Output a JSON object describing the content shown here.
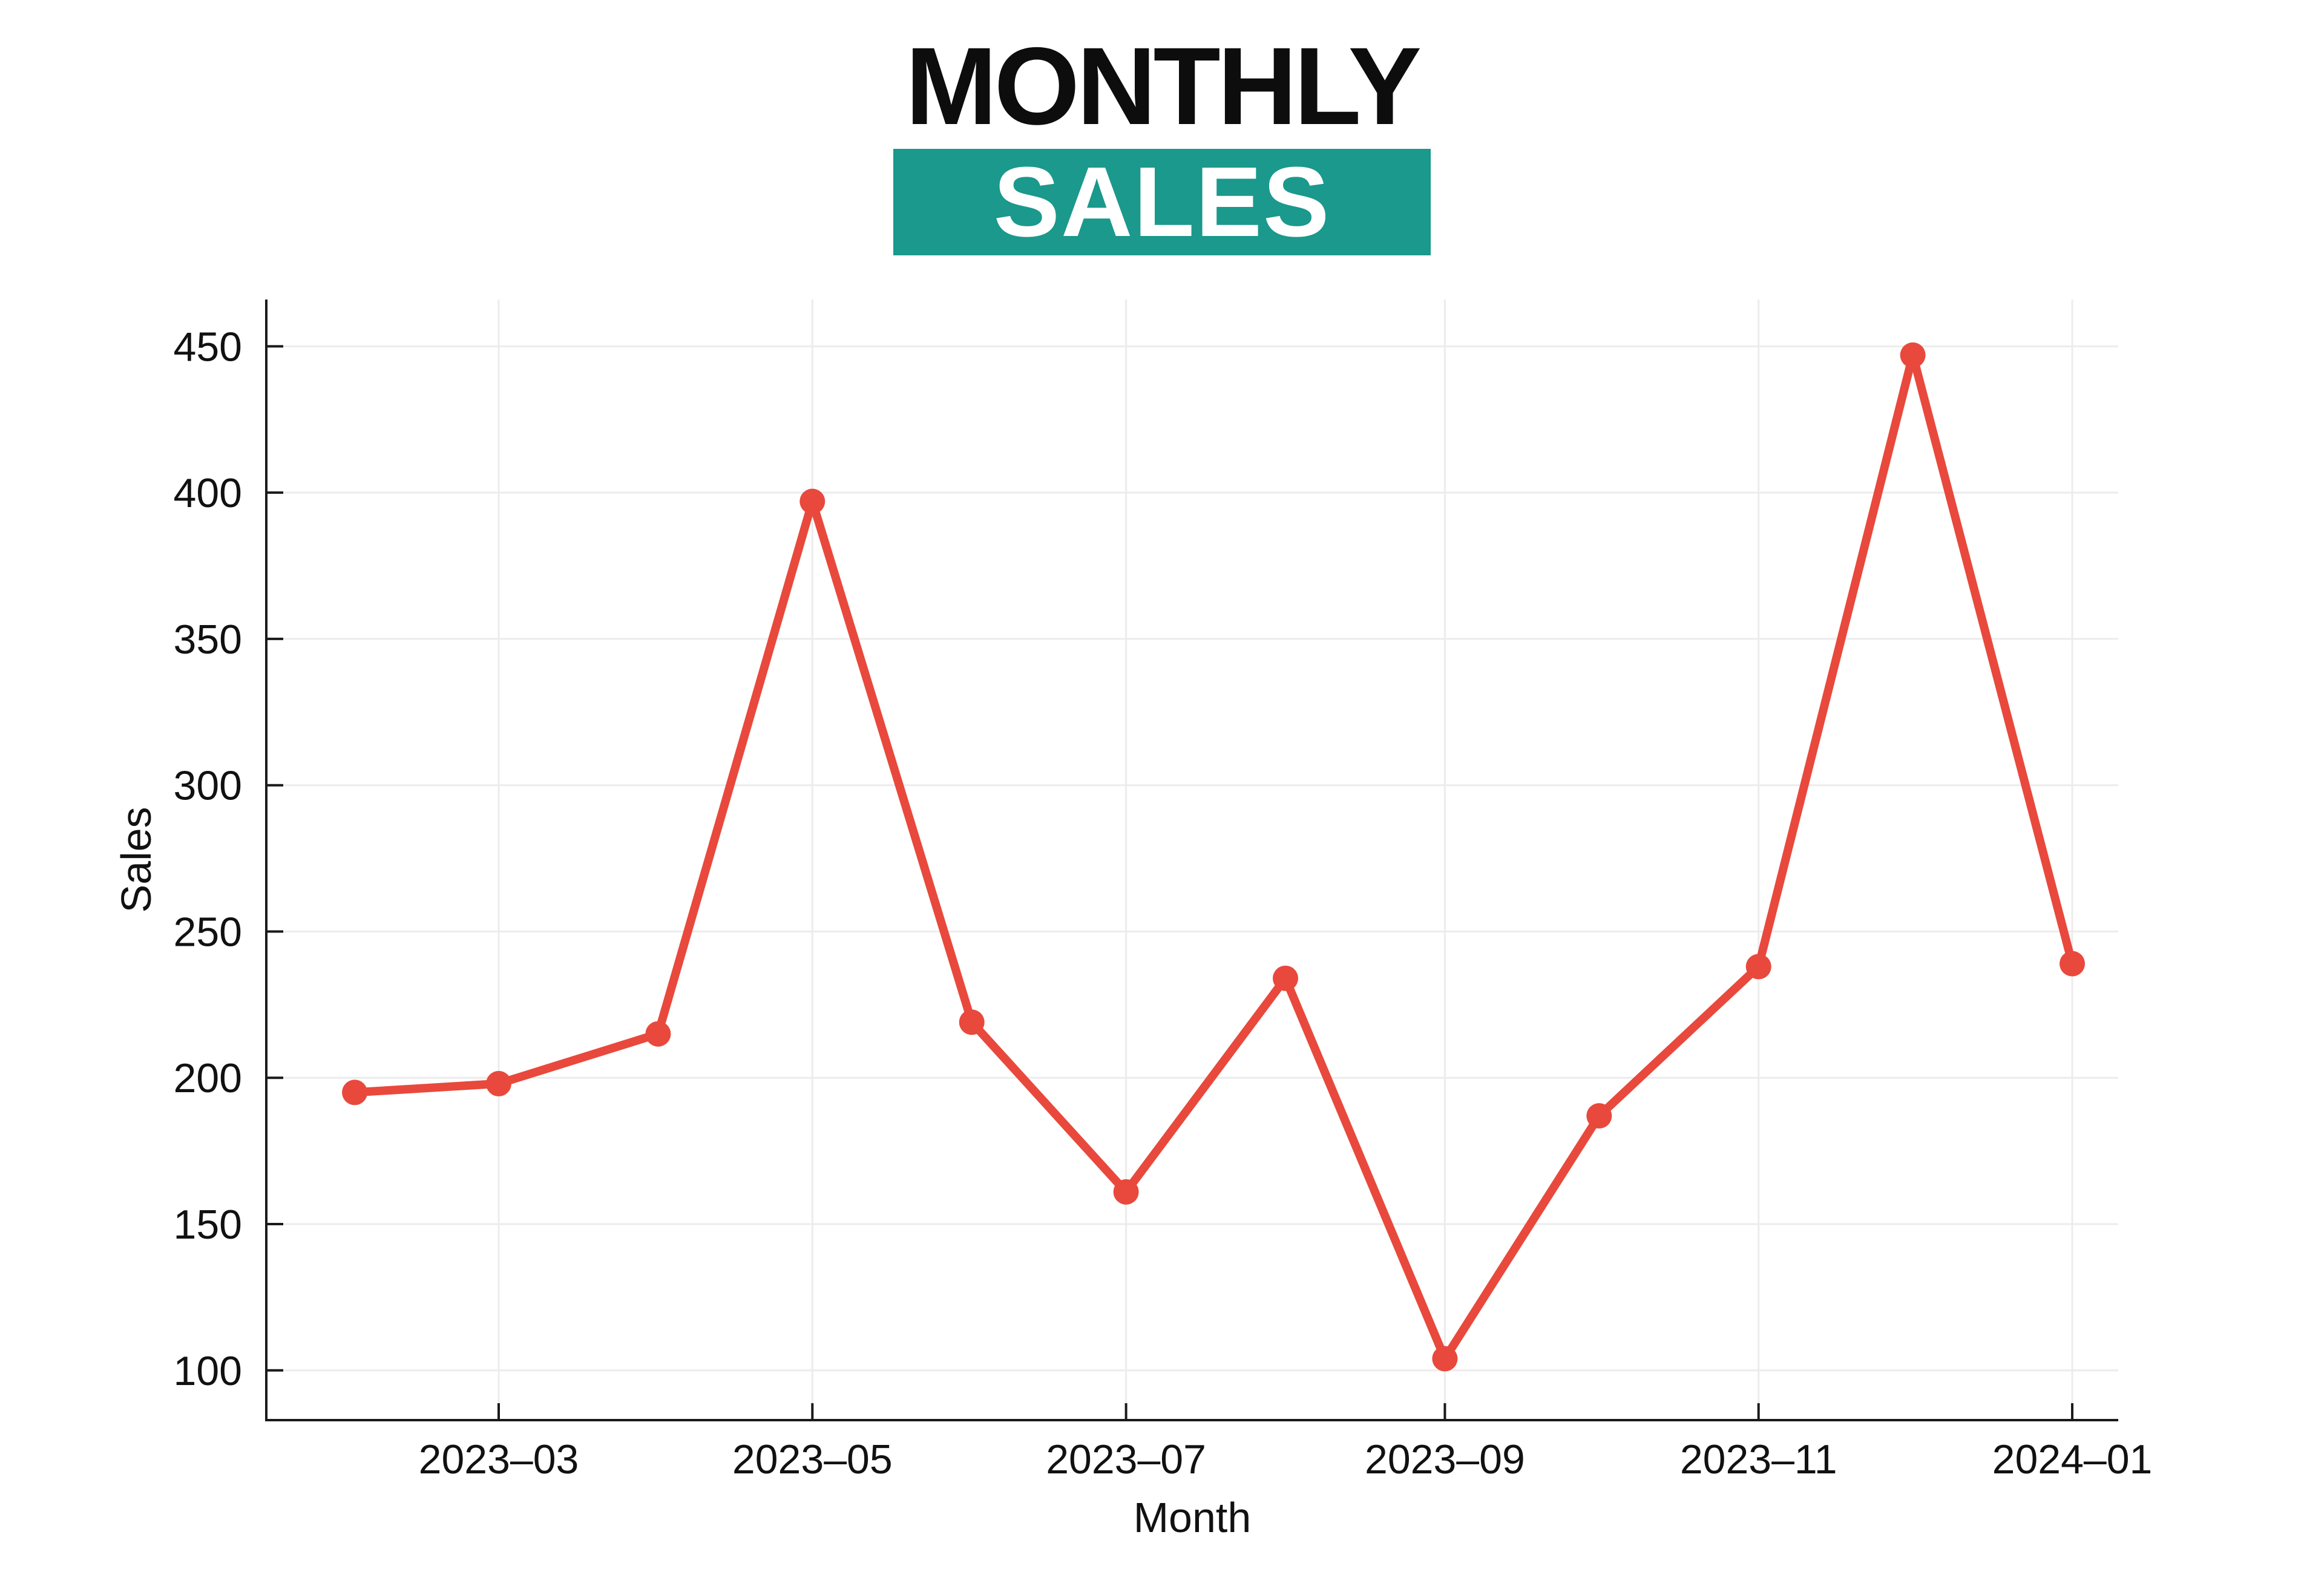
{
  "title": {
    "line1": "MONTHLY",
    "line2": "SALES"
  },
  "colors": {
    "banner_teal": "#1A998C",
    "line_red": "#E8493C",
    "grid_gray": "#ECECEC",
    "axis_black": "#1A1A1A",
    "title_black": "#0D0D0D"
  },
  "chart_data": {
    "type": "line",
    "title": "MONTHLY SALES",
    "xlabel": "Month",
    "ylabel": "Sales",
    "x": [
      "2023-02",
      "2023-03",
      "2023-04",
      "2023-05",
      "2023-06",
      "2023-07",
      "2023-08",
      "2023-09",
      "2023-10",
      "2023-11",
      "2023-12",
      "2024-01"
    ],
    "values": [
      195,
      198,
      215,
      397,
      219,
      161,
      234,
      104,
      187,
      238,
      447,
      239
    ],
    "series_name": "Sales",
    "x_tick_labels": [
      "2023-03",
      "2023-05",
      "2023-07",
      "2023-09",
      "2023-11",
      "2024-01"
    ],
    "y_ticks": [
      100,
      150,
      200,
      250,
      300,
      350,
      400,
      450
    ],
    "ylim": [
      83,
      466
    ],
    "grid": true,
    "legend_position": "none",
    "marker": "circle"
  }
}
